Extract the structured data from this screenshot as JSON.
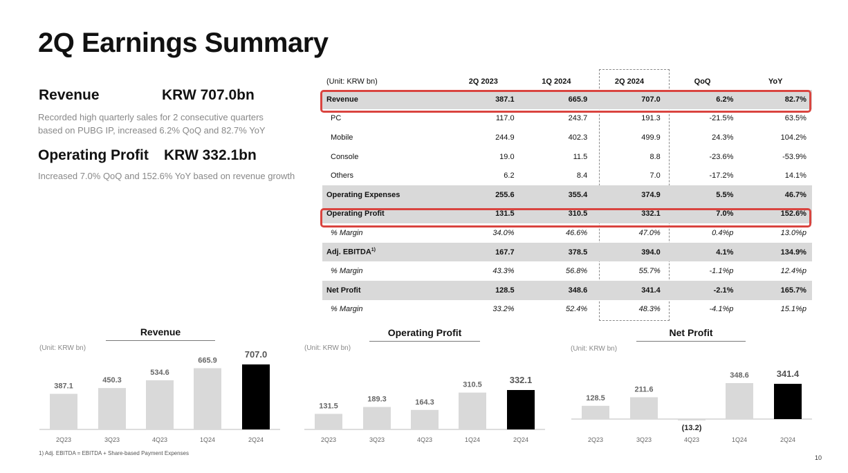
{
  "title": "2Q Earnings Summary",
  "revenue": {
    "label": "Revenue",
    "value": "KRW 707.0bn",
    "desc1": "Recorded high quarterly sales for 2 consecutive quarters",
    "desc2": "based on PUBG IP, increased 6.2% QoQ and 82.7% YoY"
  },
  "op_profit": {
    "label": "Operating Profit",
    "value": "KRW 332.1bn",
    "desc": "Increased 7.0% QoQ and 152.6% YoY based on revenue growth"
  },
  "table": {
    "unit": "(Unit: KRW bn)",
    "headers": [
      "2Q 2023",
      "1Q 2024",
      "2Q 2024",
      "QoQ",
      "YoY"
    ],
    "rows": [
      {
        "label": "Revenue",
        "sup": "",
        "style": "shaded",
        "values": [
          "387.1",
          "665.9",
          "707.0",
          "6.2%",
          "82.7%"
        ]
      },
      {
        "label": "PC",
        "sup": "",
        "style": "sub",
        "values": [
          "117.0",
          "243.7",
          "191.3",
          "-21.5%",
          "63.5%"
        ]
      },
      {
        "label": "Mobile",
        "sup": "",
        "style": "sub",
        "values": [
          "244.9",
          "402.3",
          "499.9",
          "24.3%",
          "104.2%"
        ]
      },
      {
        "label": "Console",
        "sup": "",
        "style": "sub",
        "values": [
          "19.0",
          "11.5",
          "8.8",
          "-23.6%",
          "-53.9%"
        ]
      },
      {
        "label": "Others",
        "sup": "",
        "style": "sub",
        "values": [
          "6.2",
          "8.4",
          "7.0",
          "-17.2%",
          "14.1%"
        ]
      },
      {
        "label": "Operating Expenses",
        "sup": "",
        "style": "shaded",
        "values": [
          "255.6",
          "355.4",
          "374.9",
          "5.5%",
          "46.7%"
        ]
      },
      {
        "label": "Operating Profit",
        "sup": "",
        "style": "shaded",
        "values": [
          "131.5",
          "310.5",
          "332.1",
          "7.0%",
          "152.6%"
        ]
      },
      {
        "label": "% Margin",
        "sup": "",
        "style": "margin",
        "values": [
          "34.0%",
          "46.6%",
          "47.0%",
          "0.4%p",
          "13.0%p"
        ]
      },
      {
        "label": "Adj. EBITDA",
        "sup": "1)",
        "style": "shaded",
        "values": [
          "167.7",
          "378.5",
          "394.0",
          "4.1%",
          "134.9%"
        ]
      },
      {
        "label": "% Margin",
        "sup": "",
        "style": "margin",
        "values": [
          "43.3%",
          "56.8%",
          "55.7%",
          "-1.1%p",
          "12.4%p"
        ]
      },
      {
        "label": "Net Profit",
        "sup": "",
        "style": "shaded",
        "values": [
          "128.5",
          "348.6",
          "341.4",
          "-2.1%",
          "165.7%"
        ]
      },
      {
        "label": "% Margin",
        "sup": "",
        "style": "margin",
        "values": [
          "33.2%",
          "52.4%",
          "48.3%",
          "-4.1%p",
          "15.1%p"
        ]
      }
    ]
  },
  "chart_data": [
    {
      "type": "bar",
      "title": "Revenue",
      "unit": "(Unit: KRW bn)",
      "categories": [
        "2Q23",
        "3Q23",
        "4Q23",
        "1Q24",
        "2Q24"
      ],
      "values": [
        387.1,
        450.3,
        534.6,
        665.9,
        707.0
      ],
      "labels": [
        "387.1",
        "450.3",
        "534.6",
        "665.9",
        "707.0"
      ],
      "colors": [
        "#d9d9d9",
        "#d9d9d9",
        "#d9d9d9",
        "#d9d9d9",
        "#000000"
      ]
    },
    {
      "type": "bar",
      "title": "Operating Profit",
      "unit": "(Unit: KRW bn)",
      "categories": [
        "2Q23",
        "3Q23",
        "4Q23",
        "1Q24",
        "2Q24"
      ],
      "values": [
        131.5,
        189.3,
        164.3,
        310.5,
        332.1
      ],
      "labels": [
        "131.5",
        "189.3",
        "164.3",
        "310.5",
        "332.1"
      ],
      "colors": [
        "#d9d9d9",
        "#d9d9d9",
        "#d9d9d9",
        "#d9d9d9",
        "#000000"
      ]
    },
    {
      "type": "bar",
      "title": "Net Profit",
      "unit": "(Unit: KRW bn)",
      "categories": [
        "2Q23",
        "3Q23",
        "4Q23",
        "1Q24",
        "2Q24"
      ],
      "values": [
        128.5,
        211.6,
        -13.2,
        348.6,
        341.4
      ],
      "labels": [
        "128.5",
        "211.6",
        "(13.2)",
        "348.6",
        "341.4"
      ],
      "colors": [
        "#d9d9d9",
        "#d9d9d9",
        "#d9d9d9",
        "#d9d9d9",
        "#000000"
      ]
    }
  ],
  "footnote": "1) Adj. EBITDA = EBITDA + Share-based Payment Expenses",
  "page_number": "10"
}
